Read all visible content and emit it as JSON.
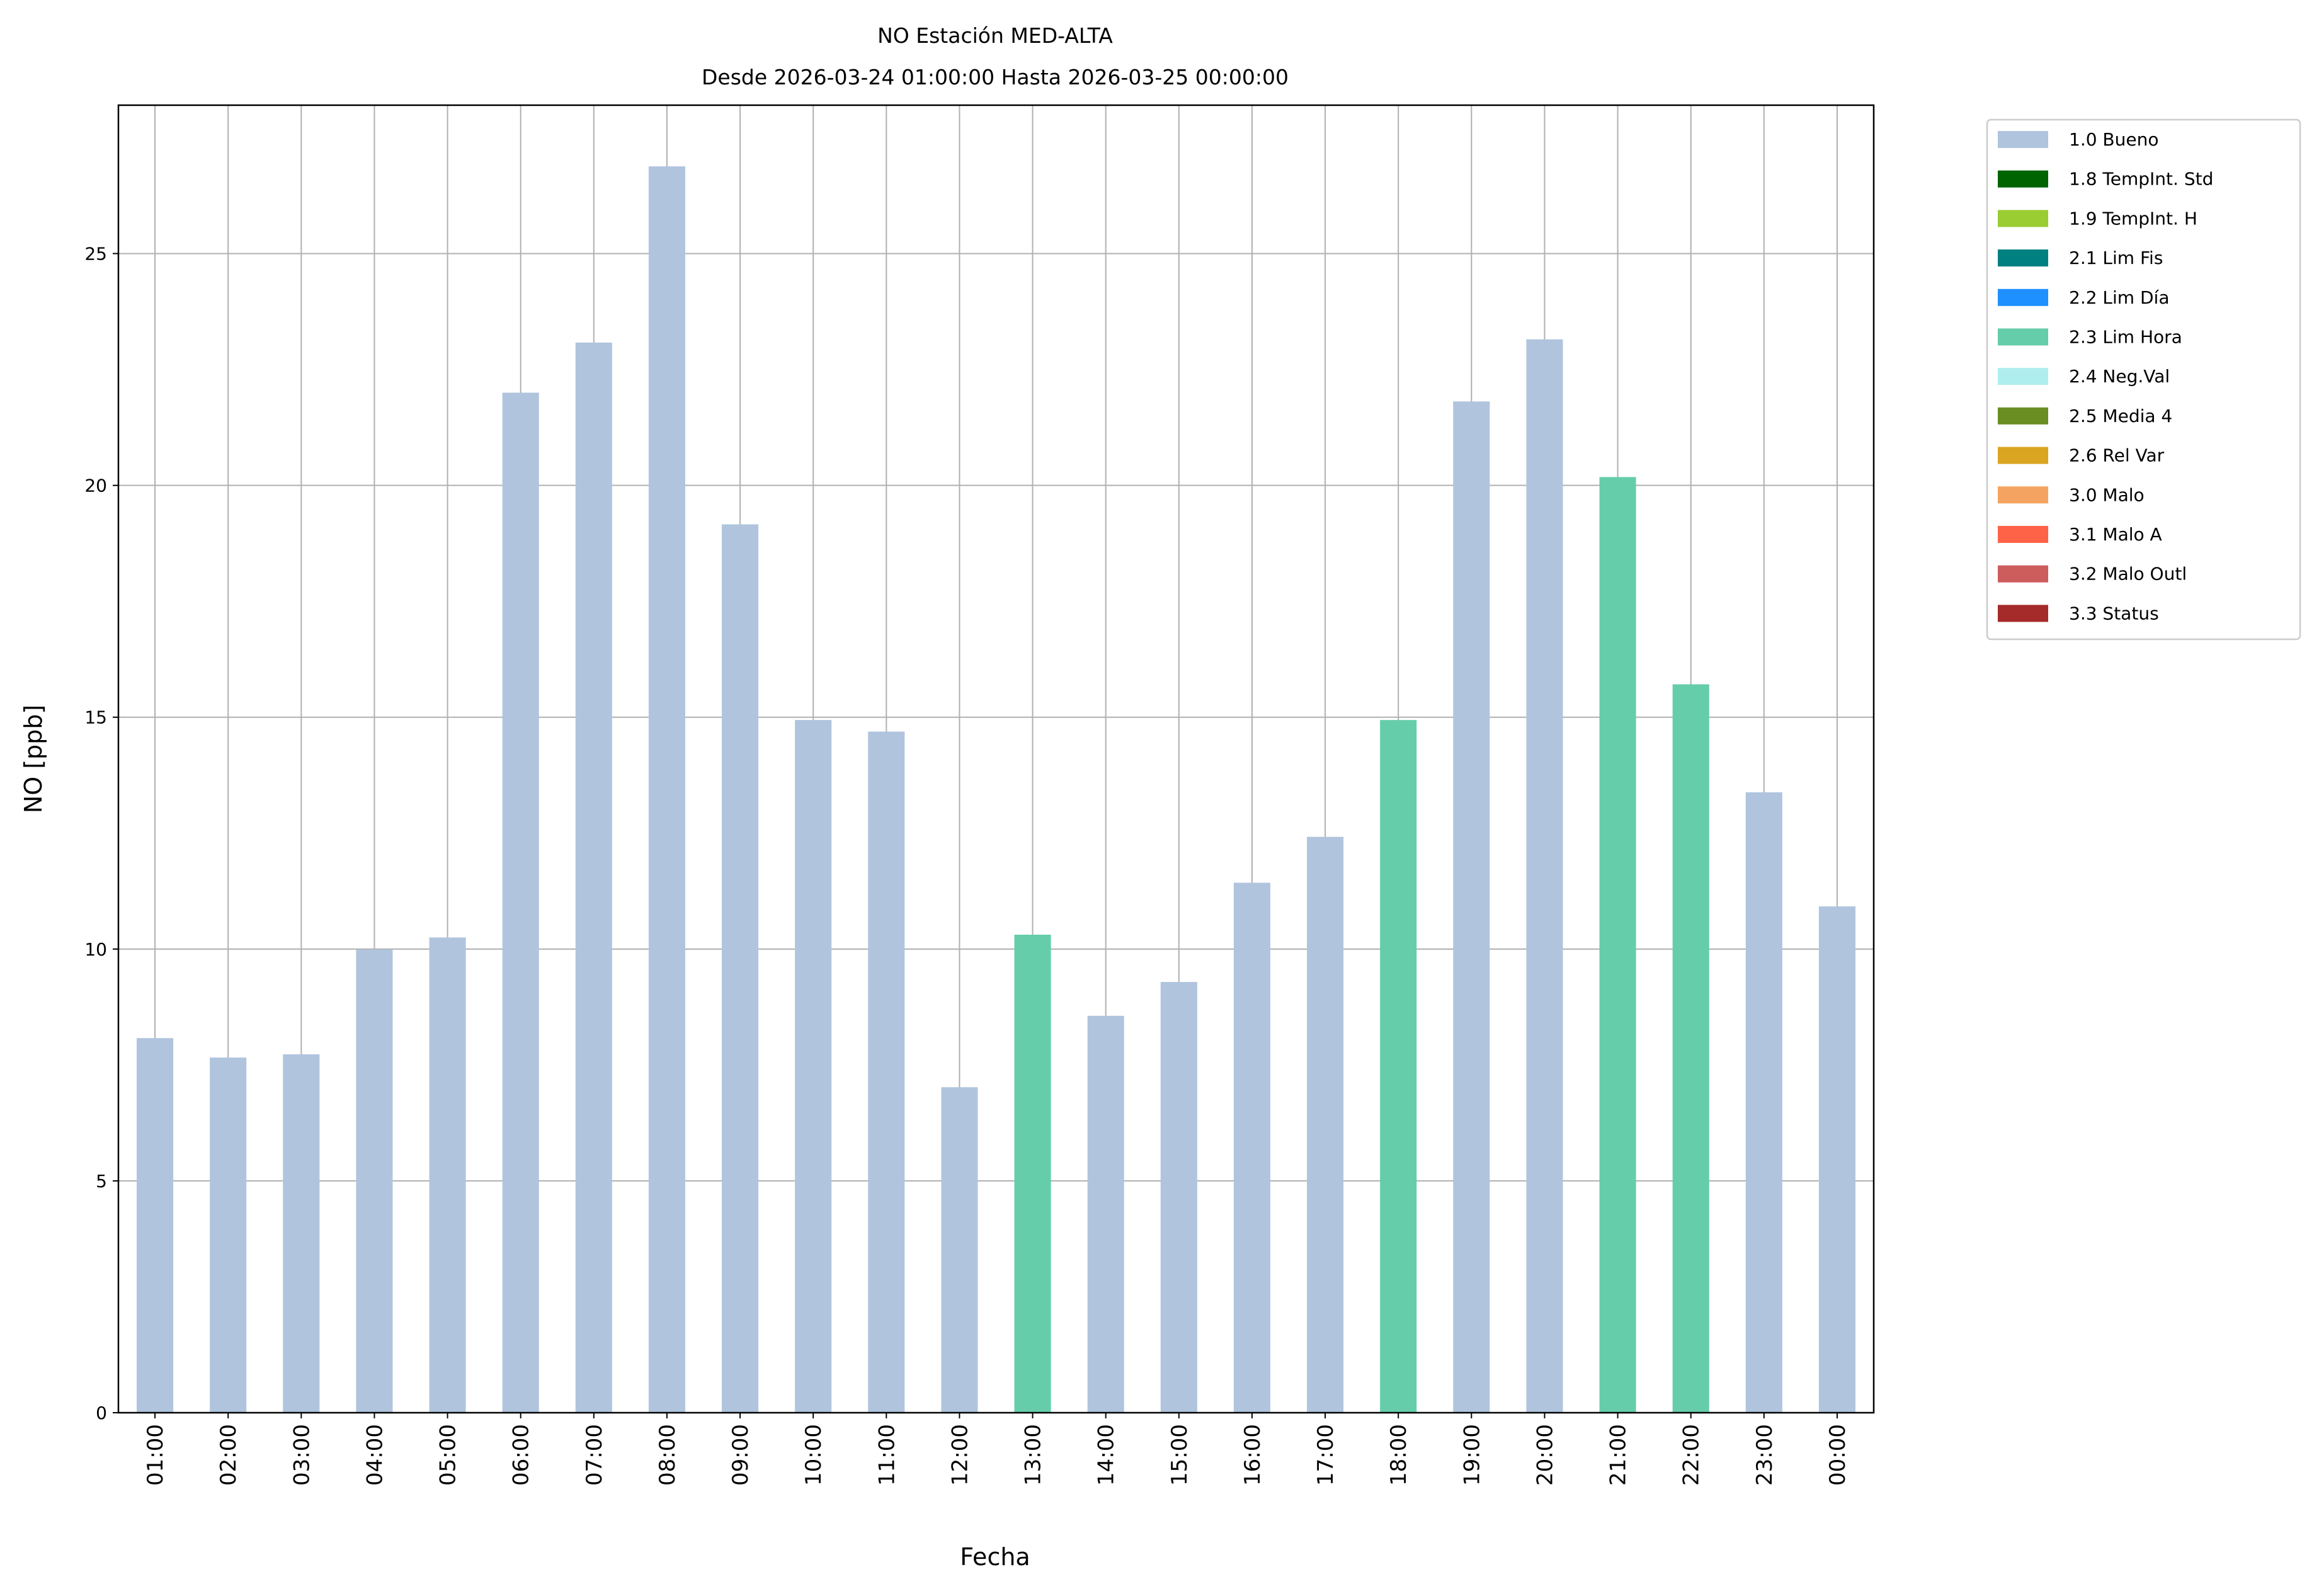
{
  "chart_data": {
    "type": "bar",
    "title": "NO Estación MED-ALTA",
    "subtitle": "Desde 2026-03-24 01:00:00 Hasta 2026-03-25 00:00:00",
    "xlabel": "Fecha",
    "ylabel": "NO [ppb]",
    "ylim": [
      0,
      28.2
    ],
    "yticks": [
      0,
      5,
      10,
      15,
      20,
      25
    ],
    "grid": true,
    "legend_position": "outside-top-right",
    "categories": [
      "01:00",
      "02:00",
      "03:00",
      "04:00",
      "05:00",
      "06:00",
      "07:00",
      "08:00",
      "09:00",
      "10:00",
      "11:00",
      "12:00",
      "13:00",
      "14:00",
      "15:00",
      "16:00",
      "17:00",
      "18:00",
      "19:00",
      "20:00",
      "21:00",
      "22:00",
      "23:00",
      "00:00"
    ],
    "values": [
      8.08,
      7.66,
      7.73,
      9.99,
      10.25,
      22.0,
      23.08,
      26.88,
      19.16,
      14.94,
      14.69,
      7.02,
      10.31,
      8.56,
      9.29,
      11.43,
      12.42,
      14.94,
      21.81,
      23.15,
      20.18,
      15.71,
      13.38,
      10.92
    ],
    "flags": [
      "1.0 Bueno",
      "1.0 Bueno",
      "1.0 Bueno",
      "1.0 Bueno",
      "1.0 Bueno",
      "1.0 Bueno",
      "1.0 Bueno",
      "1.0 Bueno",
      "1.0 Bueno",
      "1.0 Bueno",
      "1.0 Bueno",
      "1.0 Bueno",
      "2.3 Lim Hora",
      "1.0 Bueno",
      "1.0 Bueno",
      "1.0 Bueno",
      "1.0 Bueno",
      "2.3 Lim Hora",
      "1.0 Bueno",
      "1.0 Bueno",
      "2.3 Lim Hora",
      "2.3 Lim Hora",
      "1.0 Bueno",
      "1.0 Bueno"
    ],
    "legend": [
      {
        "label": "1.0 Bueno",
        "color": "#b0c4de"
      },
      {
        "label": "1.8 TempInt. Std",
        "color": "#006400"
      },
      {
        "label": "1.9 TempInt. H",
        "color": "#9acd32"
      },
      {
        "label": "2.1 Lim Fis",
        "color": "#008080"
      },
      {
        "label": "2.2 Lim Día",
        "color": "#1e90ff"
      },
      {
        "label": "2.3 Lim Hora",
        "color": "#66cdaa"
      },
      {
        "label": "2.4 Neg.Val",
        "color": "#afeeee"
      },
      {
        "label": "2.5 Media 4",
        "color": "#6b8e23"
      },
      {
        "label": "2.6 Rel Var",
        "color": "#daa520"
      },
      {
        "label": "3.0 Malo",
        "color": "#f4a460"
      },
      {
        "label": "3.1 Malo A",
        "color": "#ff6347"
      },
      {
        "label": "3.2 Malo Outl",
        "color": "#cd5c5c"
      },
      {
        "label": "3.3 Status",
        "color": "#a52a2a"
      }
    ]
  }
}
